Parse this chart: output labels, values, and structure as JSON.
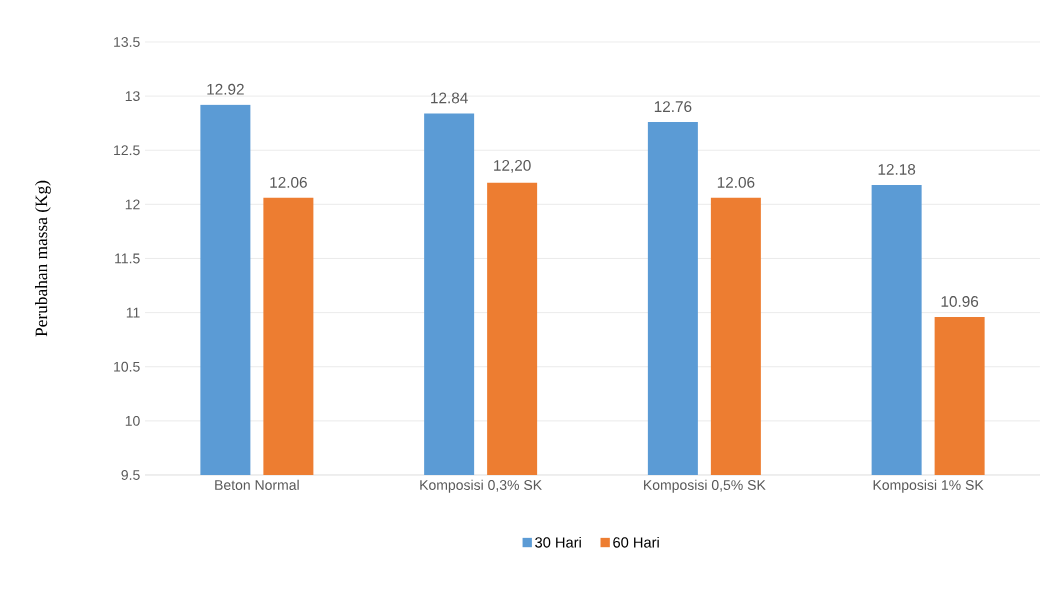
{
  "chart_data": {
    "type": "bar",
    "ylabel": "Perubahan massa (Kg)",
    "categories": [
      "Beton Normal",
      "Komposisi 0,3% SK",
      "Komposisi 0,5% SK",
      "Komposisi 1% SK"
    ],
    "series": [
      {
        "name": "30 Hari",
        "color": "#5b9bd5",
        "values": [
          12.92,
          12.84,
          12.76,
          12.18
        ],
        "value_labels": [
          "12.92",
          "12.84",
          "12.76",
          "12.18"
        ]
      },
      {
        "name": "60 Hari",
        "color": "#ed7d31",
        "values": [
          12.06,
          12.2,
          12.06,
          10.96
        ],
        "value_labels": [
          "12.06",
          "12,20",
          "12.06",
          "10.96"
        ]
      }
    ],
    "ylim": [
      9.5,
      13.5
    ],
    "yticks": [
      9.5,
      10,
      10.5,
      11,
      11.5,
      12,
      12.5,
      13,
      13.5
    ],
    "grid": "y",
    "legend": "bottom"
  }
}
